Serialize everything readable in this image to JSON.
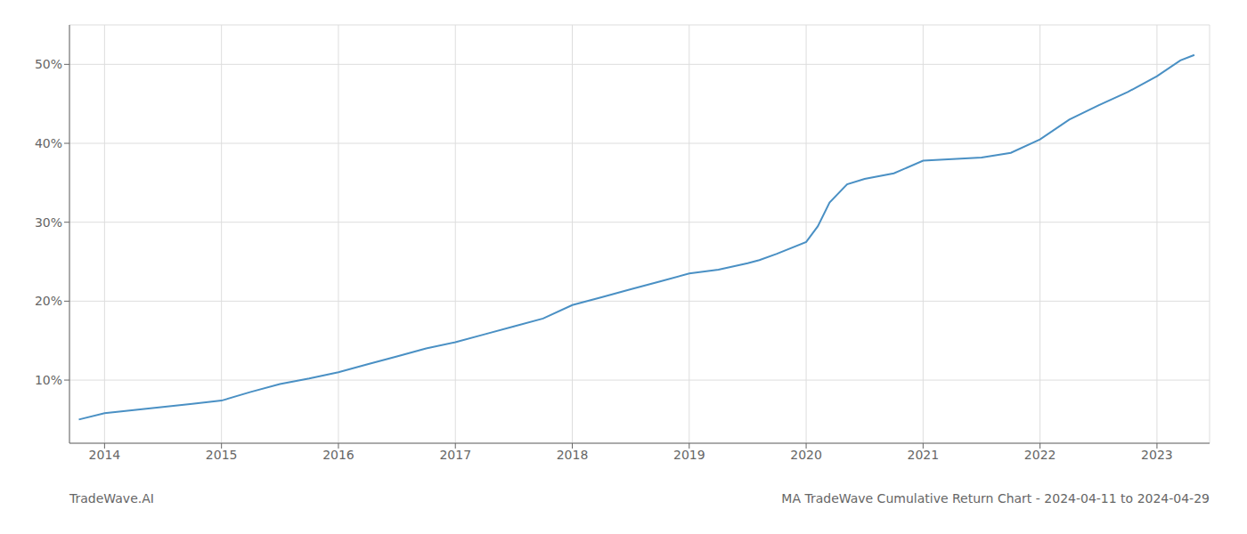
{
  "chart_data": {
    "type": "line",
    "title": "MA TradeWave Cumulative Return Chart - 2024-04-11 to 2024-04-29",
    "annotations": [
      "TradeWave.AI"
    ],
    "color": "#4a90c4",
    "grid": true,
    "xlim": [
      2013.7,
      2023.45
    ],
    "xticks": [
      2014,
      2015,
      2016,
      2017,
      2018,
      2019,
      2020,
      2021,
      2022,
      2023
    ],
    "ylim": [
      2,
      55
    ],
    "yticks": [
      {
        "value": 10,
        "label": "10%"
      },
      {
        "value": 20,
        "label": "20%"
      },
      {
        "value": 30,
        "label": "30%"
      },
      {
        "value": 40,
        "label": "40%"
      },
      {
        "value": 50,
        "label": "50%"
      }
    ],
    "x": [
      2013.78,
      2014.0,
      2014.25,
      2014.5,
      2014.75,
      2015.0,
      2015.25,
      2015.5,
      2015.75,
      2016.0,
      2016.25,
      2016.5,
      2016.75,
      2017.0,
      2017.25,
      2017.5,
      2017.75,
      2018.0,
      2018.25,
      2018.5,
      2018.75,
      2019.0,
      2019.25,
      2019.5,
      2019.6,
      2019.75,
      2020.0,
      2020.1,
      2020.2,
      2020.35,
      2020.5,
      2020.75,
      2021.0,
      2021.25,
      2021.5,
      2021.75,
      2022.0,
      2022.25,
      2022.5,
      2022.75,
      2023.0,
      2023.2,
      2023.32
    ],
    "values": [
      5.0,
      5.8,
      6.2,
      6.6,
      7.0,
      7.4,
      8.5,
      9.5,
      10.2,
      11.0,
      12.0,
      13.0,
      14.0,
      14.8,
      15.8,
      16.8,
      17.8,
      19.5,
      20.5,
      21.5,
      22.5,
      23.5,
      24.0,
      24.8,
      25.2,
      26.0,
      27.5,
      29.5,
      32.5,
      34.8,
      35.5,
      36.2,
      37.8,
      38.0,
      38.2,
      38.8,
      40.5,
      43.0,
      44.8,
      46.5,
      48.5,
      50.5,
      51.2
    ]
  }
}
